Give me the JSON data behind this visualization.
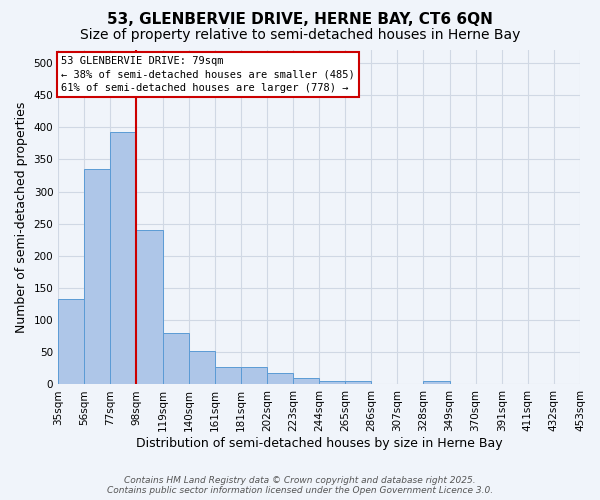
{
  "title": "53, GLENBERVIE DRIVE, HERNE BAY, CT6 6QN",
  "subtitle": "Size of property relative to semi-detached houses in Herne Bay",
  "xlabel": "Distribution of semi-detached houses by size in Herne Bay",
  "ylabel": "Number of semi-detached properties",
  "bar_values": [
    133,
    335,
    393,
    240,
    80,
    52,
    27,
    27,
    18,
    10,
    5,
    5,
    0,
    0,
    5,
    0,
    0,
    0,
    0,
    0
  ],
  "bin_labels": [
    "35sqm",
    "56sqm",
    "77sqm",
    "98sqm",
    "119sqm",
    "140sqm",
    "161sqm",
    "181sqm",
    "202sqm",
    "223sqm",
    "244sqm",
    "265sqm",
    "286sqm",
    "307sqm",
    "328sqm",
    "349sqm",
    "370sqm",
    "391sqm",
    "411sqm",
    "432sqm",
    "453sqm"
  ],
  "bar_color": "#aec6e8",
  "bar_edge_color": "#5b9bd5",
  "grid_color": "#d0d8e4",
  "background_color": "#f0f4fa",
  "red_line_bin_index": 2,
  "annotation_text_line1": "53 GLENBERVIE DRIVE: 79sqm",
  "annotation_text_line2": "← 38% of semi-detached houses are smaller (485)",
  "annotation_text_line3": "61% of semi-detached houses are larger (778) →",
  "annotation_box_color": "#ffffff",
  "annotation_box_edge_color": "#cc0000",
  "ylim": [
    0,
    520
  ],
  "yticks": [
    0,
    50,
    100,
    150,
    200,
    250,
    300,
    350,
    400,
    450,
    500
  ],
  "footer_line1": "Contains HM Land Registry data © Crown copyright and database right 2025.",
  "footer_line2": "Contains public sector information licensed under the Open Government Licence 3.0.",
  "title_fontsize": 11,
  "subtitle_fontsize": 10,
  "axis_label_fontsize": 9,
  "tick_fontsize": 7.5,
  "footer_fontsize": 6.5
}
